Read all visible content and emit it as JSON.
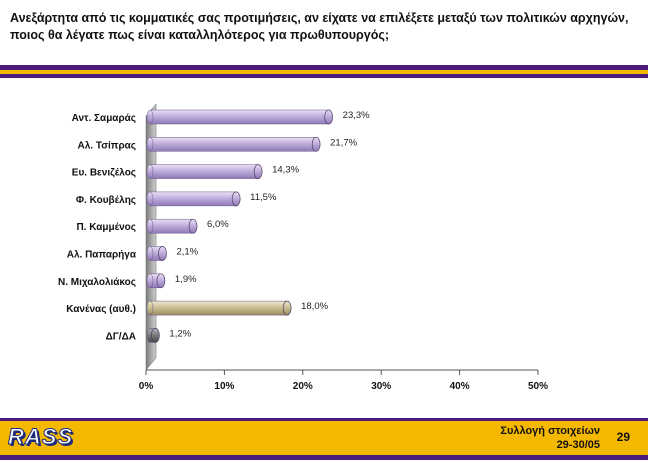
{
  "title": "Ανεξάρτητα από τις κομματικές σας προτιμήσεις, αν είχατε να επιλέξετε μεταξύ των πολιτικών αρχηγών, ποιος θα λέγατε πως είναι καταλληλότερος για πρωθυπουργός;",
  "chart_data": {
    "type": "bar",
    "orientation": "horizontal",
    "categories": [
      "Αντ. Σαμαράς",
      "Αλ. Τσίπρας",
      "Ευ. Βενιζέλος",
      "Φ. Κουβέλης",
      "Π. Καμμένος",
      "Αλ. Παπαρήγα",
      "Ν. Μιχαλολιάκος",
      "Κανένας (αυθ.)",
      "ΔΓ/ΔΑ"
    ],
    "values": [
      23.3,
      21.7,
      14.3,
      11.5,
      6.0,
      2.1,
      1.9,
      18.0,
      1.2
    ],
    "value_labels": [
      "23,3%",
      "21,7%",
      "14,3%",
      "11,5%",
      "6,0%",
      "2,1%",
      "1,9%",
      "18,0%",
      "1,2%"
    ],
    "xlim": [
      0,
      50
    ],
    "ticks": [
      0,
      10,
      20,
      30,
      40,
      50
    ],
    "tick_labels": [
      "0%",
      "10%",
      "20%",
      "30%",
      "40%",
      "50%"
    ],
    "grid": false,
    "colors": [
      "#b9a6d6",
      "#b9a6d6",
      "#b9a6d6",
      "#b9a6d6",
      "#b9a6d6",
      "#b9a6d6",
      "#b9a6d6",
      "#c9bf8f",
      "#7a7a7a"
    ]
  },
  "footer": {
    "logo": "RASS",
    "collection_line1": "Συλλογή στοιχείων",
    "collection_line2": "29-30/05",
    "page_number": "29"
  }
}
